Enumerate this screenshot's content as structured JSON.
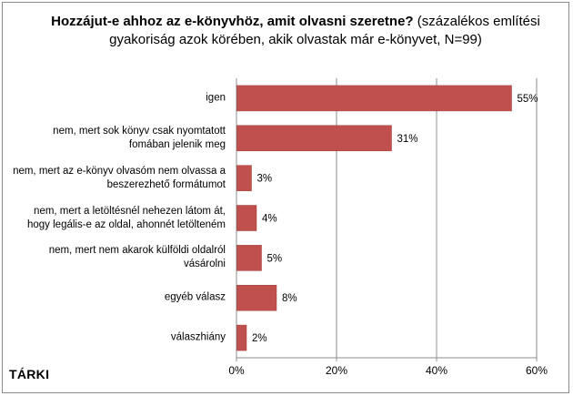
{
  "title": {
    "bold": "Hozzájut-e ahhoz az e-könyvhöz, amit olvasni szeretne?",
    "rest": "(százalékos említési gyakoriság azok körében, akik olvastak már e-könyvet, N=99)"
  },
  "brand": "TÁRKI",
  "chart_data": {
    "type": "bar",
    "orientation": "horizontal",
    "categories": [
      "igen",
      "nem, mert sok könyv csak nyomtatott fomában jelenik meg",
      "nem, mert az e-könyv olvasóm nem olvassa a beszerezhető formátumot",
      "nem, mert a letöltésnél nehezen látom át, hogy legális-e az oldal, ahonnét letölteném",
      "nem, mert nem akarok külföldi oldalról vásárolni",
      "egyéb válasz",
      "válaszhiány"
    ],
    "category_lines": [
      [
        "igen"
      ],
      [
        "nem, mert sok könyv csak nyomtatott",
        "fomában jelenik meg"
      ],
      [
        "nem, mert az e-könyv olvasóm nem olvassa a",
        "beszerezhető formátumot"
      ],
      [
        "nem, mert a letöltésnél nehezen látom át,",
        "hogy legális-e az oldal, ahonnét letölteném"
      ],
      [
        "nem, mert nem akarok külföldi oldalról",
        "vásárolni"
      ],
      [
        "egyéb válasz"
      ],
      [
        "válaszhiány"
      ]
    ],
    "values": [
      55,
      31,
      3,
      4,
      5,
      8,
      2
    ],
    "value_labels": [
      "55%",
      "31%",
      "3%",
      "4%",
      "5%",
      "8%",
      "2%"
    ],
    "xlim": [
      0,
      60
    ],
    "x_ticks": [
      0,
      20,
      40,
      60
    ],
    "x_tick_labels": [
      "0%",
      "20%",
      "40%",
      "60%"
    ],
    "grid": "vertical",
    "legend": "none",
    "colors": {
      "bar": "#c0504d",
      "bar_edge": "#a03c39",
      "grid": "#8c8c8c"
    }
  }
}
